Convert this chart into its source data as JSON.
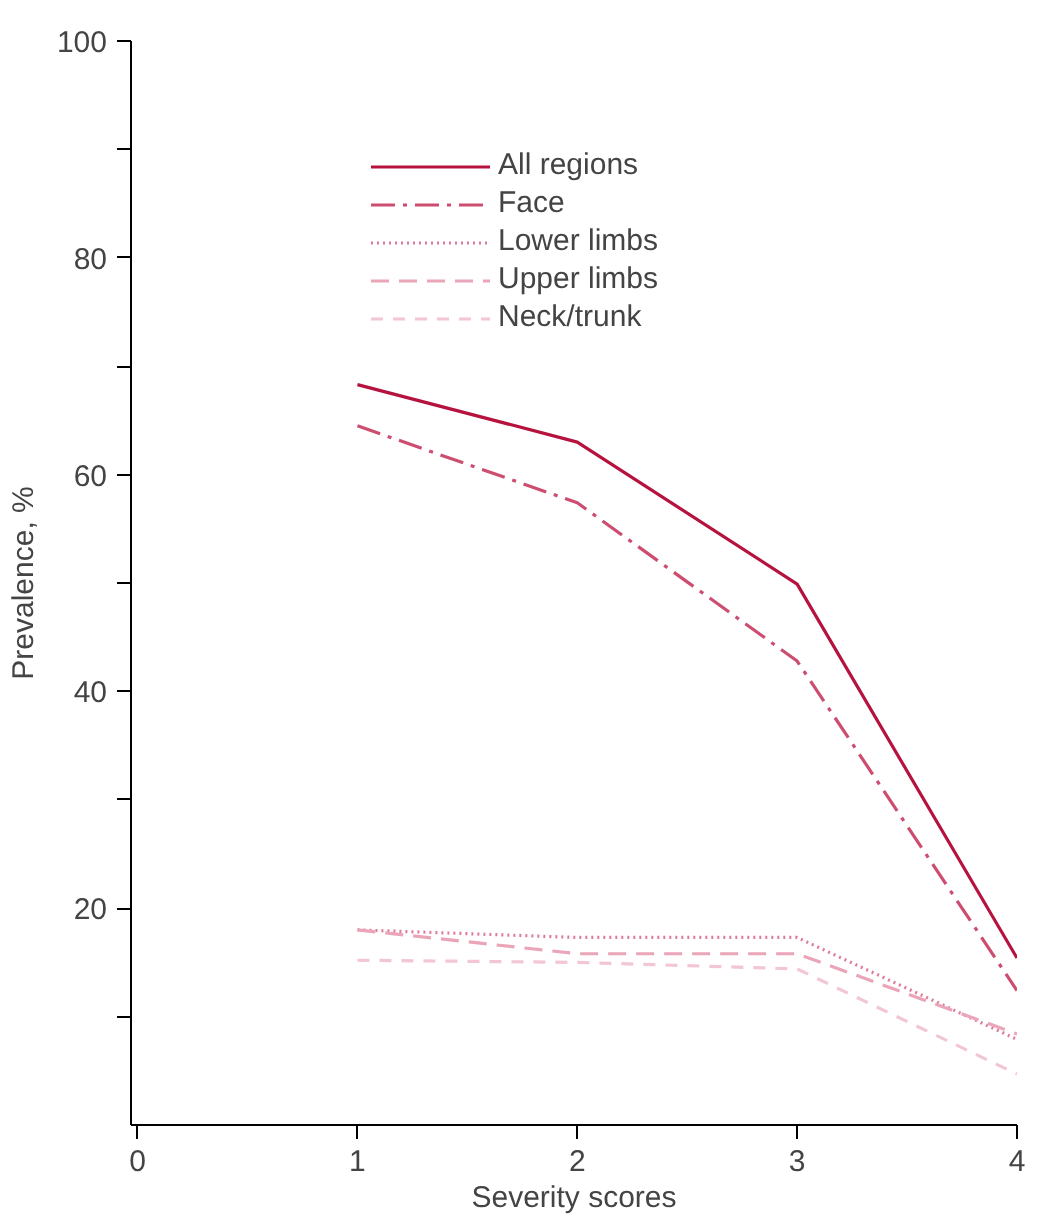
{
  "chart_data": {
    "type": "line",
    "xlabel": "Severity scores",
    "ylabel": "Prevalence, %",
    "x": [
      1,
      2,
      3,
      4
    ],
    "series": [
      {
        "name": "All regions",
        "color": "#b5123e",
        "line_style": "solid",
        "values": [
          68.3,
          63.0,
          49.9,
          15.4
        ]
      },
      {
        "name": "Face",
        "color": "#cc4d6f",
        "line_style": "dashdot",
        "values": [
          64.5,
          57.4,
          42.8,
          12.4
        ]
      },
      {
        "name": "Lower limbs",
        "color": "#e07a9a",
        "line_style": "dotted",
        "values": [
          18.0,
          17.3,
          17.3,
          7.9
        ]
      },
      {
        "name": "Upper limbs",
        "color": "#eaa5b8",
        "line_style": "dashed",
        "values": [
          18.0,
          15.8,
          15.8,
          8.4
        ]
      },
      {
        "name": "Neck/trunk",
        "color": "#f2c6d2",
        "line_style": "dashed",
        "values": [
          15.2,
          15.0,
          14.4,
          4.7
        ]
      }
    ],
    "xlim": [
      -0.03,
      4
    ],
    "xticks": [
      0,
      1,
      2,
      3,
      4
    ],
    "ylim": [
      0,
      100
    ],
    "yticks": [
      {
        "value": 10,
        "label": null
      },
      20,
      {
        "value": 30,
        "label": null
      },
      40,
      {
        "value": 50,
        "label": null
      },
      60,
      {
        "value": 70,
        "label": null
      },
      80,
      {
        "value": 90,
        "label": null
      },
      100
    ],
    "grid": false,
    "legend": "top",
    "marker": "none"
  }
}
